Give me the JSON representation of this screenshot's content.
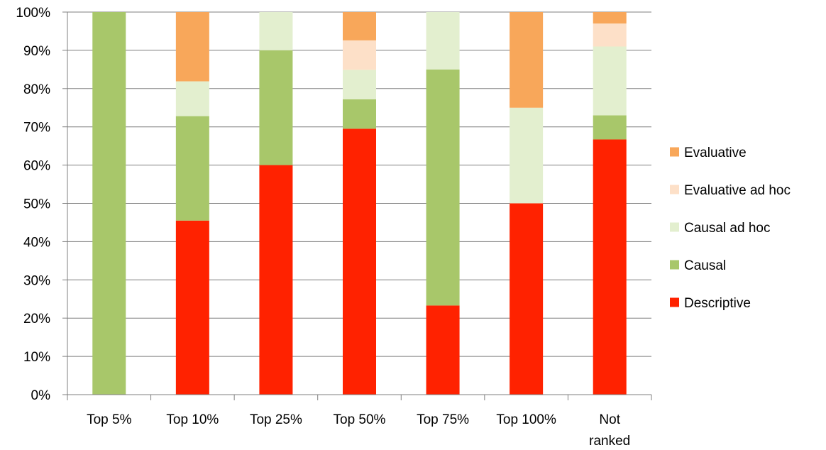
{
  "chart_data": {
    "type": "bar",
    "stacked": true,
    "categories": [
      "Top 5%",
      "Top 10%",
      "Top 25%",
      "Top 50%",
      "Top 75%",
      "Top 100%",
      "Not ranked"
    ],
    "series": [
      {
        "name": "Descriptive",
        "color": "#ff2200",
        "values": [
          0,
          45.5,
          60,
          69.5,
          23.3,
          50,
          66.7
        ]
      },
      {
        "name": "Causal",
        "color": "#a8c76a",
        "values": [
          100,
          27.3,
          30,
          7.7,
          61.7,
          0,
          6.3
        ]
      },
      {
        "name": "Causal ad hoc",
        "color": "#e3efcf",
        "values": [
          0,
          9.1,
          10,
          7.7,
          15,
          25,
          18
        ]
      },
      {
        "name": "Evaluative ad hoc",
        "color": "#fde0c8",
        "values": [
          0,
          0,
          0,
          7.7,
          0,
          0,
          6
        ]
      },
      {
        "name": "Evaluative",
        "color": "#f8a75a",
        "values": [
          0,
          18.1,
          0,
          7.4,
          0,
          25,
          3
        ]
      }
    ],
    "ylim": [
      0,
      100
    ],
    "y_ticks": [
      "0%",
      "10%",
      "20%",
      "30%",
      "40%",
      "50%",
      "60%",
      "70%",
      "80%",
      "90%",
      "100%"
    ],
    "legend_order": [
      "Evaluative",
      "Evaluative ad hoc",
      "Causal ad hoc",
      "Causal",
      "Descriptive"
    ],
    "legend_position": "right",
    "grid": true,
    "title": "",
    "xlabel": "",
    "ylabel": ""
  }
}
